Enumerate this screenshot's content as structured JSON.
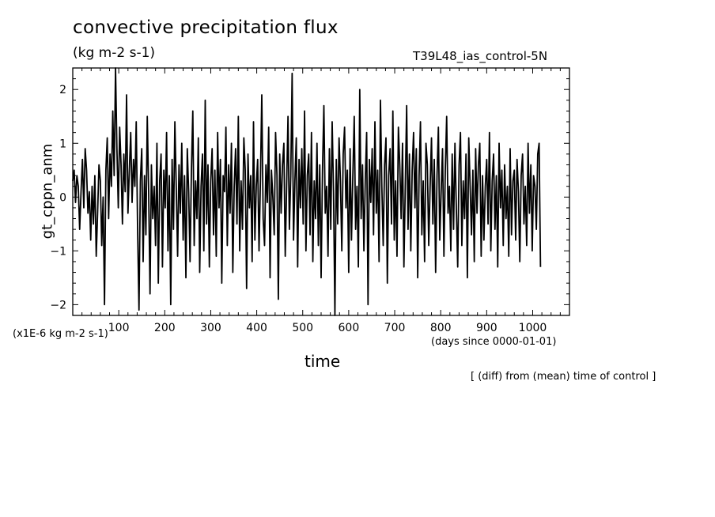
{
  "chart_data": {
    "type": "line",
    "title": "convective precipitation flux",
    "units": "(kg m-2 s-1)",
    "run_label": "T39L48_ias_control-5N",
    "ylabel": "gt_cppn_anm",
    "xlabel": "time",
    "y_scale_note": "(x1E-6 kg m-2 s-1)",
    "x_units_note": "(days since 0000-01-01)",
    "footnote": "[ (diff) from (mean) time of control ]",
    "xlim": [
      0,
      1080
    ],
    "ylim": [
      -2.2,
      2.4
    ],
    "x_ticks": [
      100,
      200,
      300,
      400,
      500,
      600,
      700,
      800,
      900,
      1000
    ],
    "y_ticks": [
      -2,
      -1,
      0,
      1,
      2
    ],
    "grid": false,
    "series": [
      {
        "x_start": 0,
        "x_step": 3,
        "values": [
          0.3,
          0.5,
          -0.1,
          0.4,
          0.2,
          -0.6,
          0.1,
          0.7,
          -0.2,
          0.9,
          0.5,
          -0.3,
          0.1,
          -0.8,
          0.2,
          -0.5,
          0.4,
          -1.1,
          -0.3,
          0.6,
          0.3,
          -0.9,
          0.0,
          -2.0,
          0.5,
          1.1,
          -0.4,
          0.8,
          0.2,
          1.6,
          0.4,
          2.4,
          0.9,
          -0.2,
          1.3,
          0.6,
          -0.5,
          0.8,
          0.1,
          1.9,
          -0.3,
          0.5,
          1.2,
          -0.1,
          0.7,
          0.2,
          1.4,
          -0.6,
          -2.1,
          0.3,
          0.9,
          -1.2,
          0.4,
          -0.7,
          1.5,
          0.1,
          -1.8,
          0.6,
          -0.4,
          0.2,
          -0.9,
          1.0,
          -1.6,
          0.3,
          0.8,
          -1.3,
          0.5,
          -0.2,
          1.2,
          -1.0,
          0.4,
          -2.0,
          0.7,
          -0.6,
          1.4,
          0.2,
          -1.1,
          0.6,
          -0.3,
          1.0,
          -0.8,
          0.4,
          -1.5,
          0.9,
          0.1,
          -1.2,
          0.5,
          1.6,
          -0.9,
          0.3,
          -0.4,
          1.1,
          -1.4,
          0.2,
          0.8,
          -1.0,
          1.8,
          -0.5,
          0.6,
          -1.3,
          0.3,
          0.9,
          -0.7,
          0.5,
          -1.1,
          1.2,
          -0.2,
          0.7,
          -1.6,
          0.4,
          0.1,
          1.3,
          -0.9,
          0.6,
          -0.3,
          1.0,
          -1.4,
          0.2,
          0.9,
          -0.5,
          1.5,
          -1.0,
          0.3,
          -0.6,
          1.1,
          0.5,
          -1.7,
          0.8,
          -0.2,
          0.4,
          -1.2,
          1.4,
          -0.8,
          0.2,
          0.7,
          -1.0,
          0.3,
          1.9,
          -0.4,
          -0.9,
          0.6,
          -0.1,
          1.3,
          -1.5,
          0.5,
          0.0,
          -0.7,
          1.2,
          0.4,
          -1.9,
          0.8,
          -0.3,
          0.6,
          1.0,
          -1.1,
          0.2,
          1.5,
          -0.6,
          0.4,
          2.3,
          -0.8,
          0.3,
          1.1,
          -1.3,
          0.7,
          -0.2,
          0.9,
          -0.5,
          1.6,
          -1.0,
          0.4,
          0.8,
          -0.7,
          1.2,
          -1.2,
          0.3,
          -0.4,
          1.0,
          -0.9,
          0.6,
          -1.5,
          0.5,
          1.7,
          -0.3,
          0.2,
          -1.1,
          0.9,
          -0.6,
          1.4,
          0.1,
          -2.2,
          0.7,
          -0.5,
          1.1,
          0.3,
          -1.0,
          0.8,
          1.3,
          -0.2,
          0.5,
          -1.4,
          0.9,
          -0.8,
          0.4,
          1.5,
          -0.6,
          0.2,
          -1.3,
          2.0,
          -0.4,
          0.6,
          -1.0,
          0.3,
          1.2,
          -2.0,
          0.7,
          -0.1,
          0.9,
          -0.7,
          1.4,
          -0.3,
          0.5,
          -1.2,
          1.8,
          0.2,
          -0.9,
          0.6,
          1.1,
          -1.6,
          0.4,
          0.9,
          -0.5,
          1.6,
          -0.8,
          0.3,
          -1.1,
          1.3,
          0.6,
          -0.4,
          1.0,
          -1.3,
          0.2,
          1.7,
          -0.6,
          0.8,
          -1.0,
          0.5,
          1.2,
          -0.2,
          0.9,
          -1.5,
          0.4,
          1.4,
          -0.7,
          0.3,
          -1.2,
          1.0,
          0.6,
          -0.9,
          0.2,
          1.1,
          -0.5,
          0.7,
          -1.4,
          0.4,
          1.3,
          -0.8,
          0.1,
          0.9,
          -1.1,
          0.5,
          1.5,
          -0.3,
          0.2,
          -1.0,
          0.8,
          -0.6,
          1.0,
          -0.2,
          -1.3,
          0.6,
          1.2,
          -0.9,
          0.3,
          -0.4,
          0.8,
          -1.5,
          1.1,
          0.2,
          -0.7,
          0.5,
          -1.2,
          0.9,
          -0.3,
          0.6,
          1.0,
          -1.1,
          0.4,
          -0.8,
          0.2,
          0.7,
          -0.5,
          1.2,
          -1.0,
          0.3,
          0.8,
          -0.6,
          0.4,
          -1.3,
          1.0,
          -0.2,
          0.5,
          -0.9,
          0.6,
          -0.4,
          0.2,
          -1.1,
          0.9,
          -0.7,
          0.3,
          0.5,
          -0.8,
          0.7,
          0.1,
          -1.2,
          0.4,
          0.8,
          -0.5,
          0.2,
          -0.9,
          1.0,
          -0.3,
          0.6,
          -1.0,
          0.4,
          0.2,
          -0.6,
          0.8,
          1.0,
          -1.3
        ]
      }
    ]
  }
}
